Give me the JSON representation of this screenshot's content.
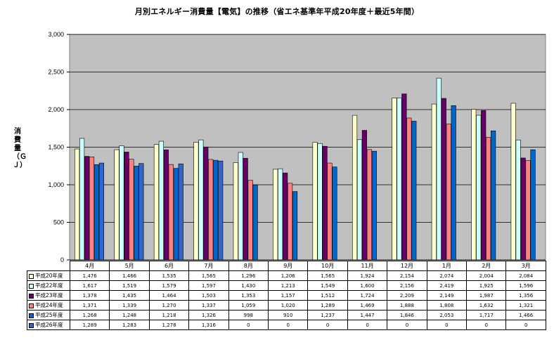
{
  "chart_data": {
    "type": "bar",
    "title": "月別エネルギー消費量【電気】の推移（省エネ基準年平成20年度＋最近5年間）",
    "ylabel": "消費量（ＧＪ）",
    "xlabel": "",
    "ylim": [
      0,
      3000
    ],
    "yticks": [
      0,
      500,
      1000,
      1500,
      2000,
      2500,
      3000
    ],
    "ytick_labels": [
      "0",
      "500",
      "1,000",
      "1,500",
      "2,000",
      "2,500",
      "3,000"
    ],
    "grid": true,
    "categories": [
      "4月",
      "5月",
      "6月",
      "7月",
      "8月",
      "9月",
      "10月",
      "11月",
      "12月",
      "1月",
      "2月",
      "3月"
    ],
    "series": [
      {
        "name": "平成20年度",
        "color": "#FFFFCC",
        "values": [
          1476,
          1466,
          1535,
          1565,
          1296,
          1206,
          1565,
          1924,
          2154,
          2074,
          2004,
          2084
        ],
        "labels": [
          "1,476",
          "1,466",
          "1,535",
          "1,565",
          "1,296",
          "1,206",
          "1,565",
          "1,924",
          "2,154",
          "2,074",
          "2,004",
          "2,084"
        ]
      },
      {
        "name": "平成22年度",
        "color": "#CCFFFF",
        "values": [
          1617,
          1519,
          1579,
          1597,
          1430,
          1213,
          1549,
          1600,
          2156,
          2419,
          1925,
          1596
        ],
        "labels": [
          "1,617",
          "1,519",
          "1,579",
          "1,597",
          "1,430",
          "1,213",
          "1,549",
          "1,600",
          "2,156",
          "2,419",
          "1,925",
          "1,596"
        ]
      },
      {
        "name": "平成23年度",
        "color": "#660066",
        "values": [
          1378,
          1435,
          1464,
          1503,
          1353,
          1157,
          1512,
          1724,
          2209,
          2149,
          1987,
          1356
        ],
        "labels": [
          "1,378",
          "1,435",
          "1,464",
          "1,503",
          "1,353",
          "1,157",
          "1,512",
          "1,724",
          "2,209",
          "2,149",
          "1,987",
          "1,356"
        ]
      },
      {
        "name": "平成24年度",
        "color": "#FF8080",
        "values": [
          1371,
          1339,
          1270,
          1337,
          1059,
          1020,
          1289,
          1469,
          1888,
          1808,
          1632,
          1321
        ],
        "labels": [
          "1,371",
          "1,339",
          "1,270",
          "1,337",
          "1,059",
          "1,020",
          "1,289",
          "1,469",
          "1,888",
          "1,808",
          "1,632",
          "1,321"
        ]
      },
      {
        "name": "平成25年度",
        "color": "#0066CC",
        "values": [
          1268,
          1248,
          1218,
          1326,
          998,
          910,
          1237,
          1447,
          1846,
          2053,
          1717,
          1466
        ],
        "labels": [
          "1,268",
          "1,248",
          "1,218",
          "1,326",
          "998",
          "910",
          "1,237",
          "1,447",
          "1,846",
          "2,053",
          "1,717",
          "1,466"
        ]
      },
      {
        "name": "平成26年度",
        "color": "#3366CC",
        "values": [
          1289,
          1283,
          1278,
          1316,
          0,
          0,
          0,
          0,
          0,
          0,
          0,
          0
        ],
        "labels": [
          "1,289",
          "1,283",
          "1,278",
          "1,316",
          "0",
          "0",
          "0",
          "0",
          "0",
          "0",
          "0",
          "0"
        ]
      }
    ]
  }
}
